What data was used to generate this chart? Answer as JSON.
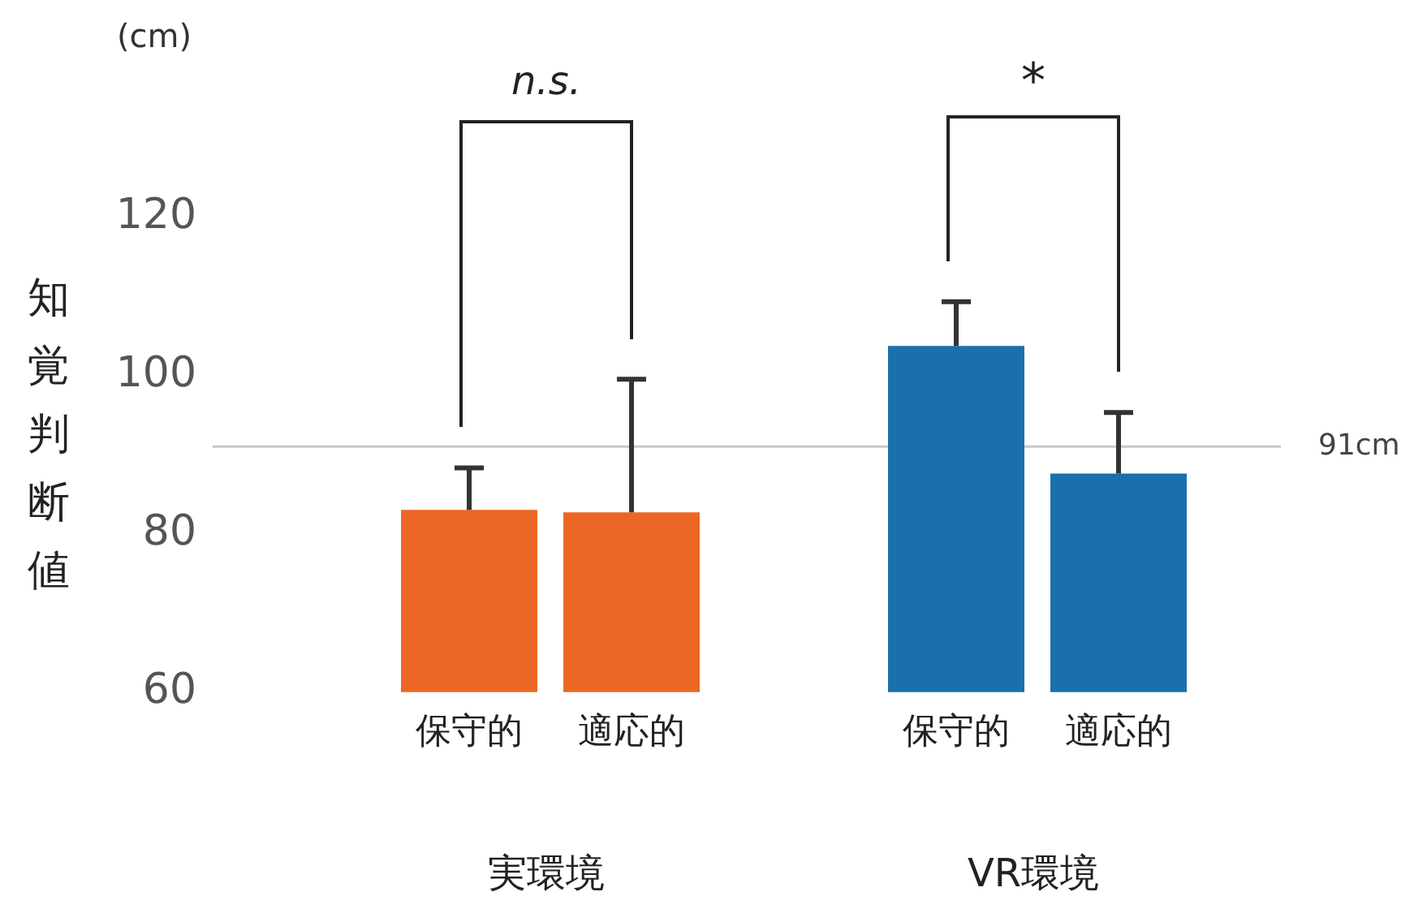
{
  "chart_data": {
    "type": "bar",
    "ylabel": "知覚判断値",
    "categories": [
      "保守的",
      "適応的",
      null,
      "保守的",
      "適応的"
    ],
    "values": [
      83,
      82.7,
      null,
      103.7,
      87.6
    ],
    "colors": [
      "#ec6725",
      "#ec6725",
      null,
      "#1a6fad",
      "#1a6fad"
    ],
    "errors": [
      [
        83,
        88.3
      ],
      [
        82.7,
        99.5
      ],
      null,
      [
        103.7,
        109.3
      ],
      [
        87.6,
        95.3
      ]
    ],
    "ylim": [
      60,
      120
    ],
    "yticks": [
      60,
      80,
      100,
      120
    ],
    "grid": false,
    "legend": false,
    "ref_lines": [
      {
        "axis": "y",
        "value": 91,
        "label": "91cm",
        "color": "#c8c8c8"
      }
    ],
    "annotations": [
      "(cm)",
      "n.s.",
      "*",
      "実環境",
      "VR環境"
    ]
  }
}
